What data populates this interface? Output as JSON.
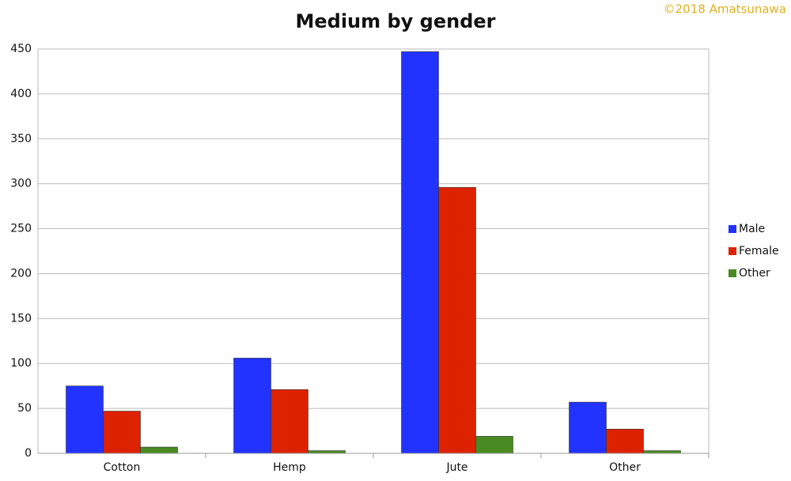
{
  "chart_data": {
    "type": "bar",
    "title": "Medium by gender",
    "credit": "©2018 Amatsunawa",
    "categories": [
      "Cotton",
      "Hemp",
      "Jute",
      "Other"
    ],
    "series": [
      {
        "name": "Male",
        "color": "#2233ff",
        "values": [
          75,
          106,
          447,
          57
        ]
      },
      {
        "name": "Female",
        "color": "#dd2200",
        "values": [
          47,
          71,
          296,
          27
        ]
      },
      {
        "name": "Other",
        "color": "#4a8a22",
        "values": [
          7,
          3,
          19,
          3
        ]
      }
    ],
    "ylim": [
      0,
      450
    ],
    "yticks": [
      0,
      50,
      100,
      150,
      200,
      250,
      300,
      350,
      400,
      450
    ],
    "grid": true,
    "legend": "right"
  }
}
